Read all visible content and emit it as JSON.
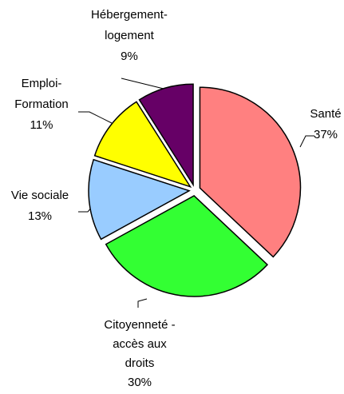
{
  "chart_data": {
    "type": "pie",
    "categories": [
      "Santé",
      "Citoyenneté - accès aux droits",
      "Vie sociale",
      "Emploi-Formation",
      "Hébergement-logement"
    ],
    "values": [
      37,
      30,
      13,
      11,
      9
    ],
    "value_labels": [
      "37%",
      "30%",
      "13%",
      "11%",
      "9%"
    ],
    "colors": [
      "#ff8080",
      "#33ff33",
      "#99ccff",
      "#ffff00",
      "#660066"
    ]
  }
}
